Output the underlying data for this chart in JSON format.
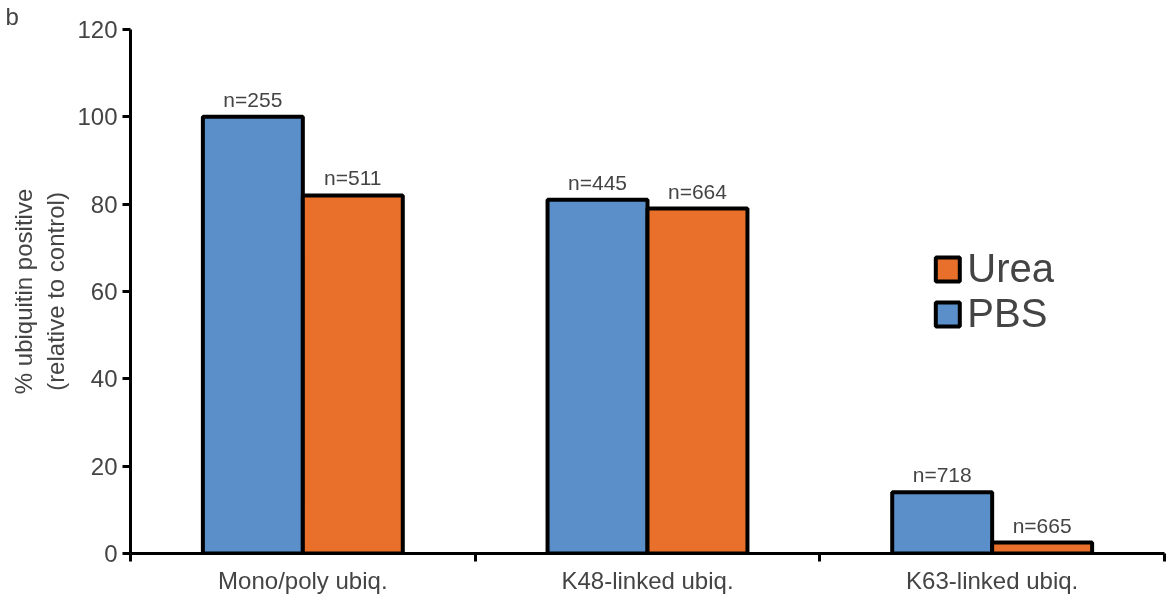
{
  "chart_data": {
    "type": "bar",
    "ylabel": "% ubiquitin positive\n(relative to control)",
    "categories": [
      "Mono/poly ubiq.",
      "K48-linked ubiq.",
      "K63-linked ubiq."
    ],
    "series": [
      {
        "name": "PBS",
        "color": "#5b8fc9",
        "values": [
          100,
          81,
          14
        ]
      },
      {
        "name": "Urea",
        "color": "#e8702a",
        "values": [
          82,
          79,
          2.5
        ]
      }
    ],
    "ylim": [
      0,
      120
    ],
    "yticks": [
      0,
      20,
      40,
      60,
      80,
      100,
      120
    ],
    "grid": false,
    "legend": "right",
    "annotations": [
      "b",
      {
        "text": "n=255",
        "x": "Mono/poly ubiq.",
        "y": 100
      },
      {
        "text": "n=511",
        "x": "Mono/poly ubiq.",
        "y": 82
      },
      {
        "text": "n=445",
        "x": "K48-linked ubiq.",
        "y": 81
      },
      {
        "text": "n=664",
        "x": "K48-linked ubiq.",
        "y": 79
      },
      {
        "text": "n=718",
        "x": "K63-linked ubiq.",
        "y": 14
      },
      {
        "text": "n=665",
        "x": "K63-linked ubiq.",
        "y": 2.5
      }
    ]
  }
}
